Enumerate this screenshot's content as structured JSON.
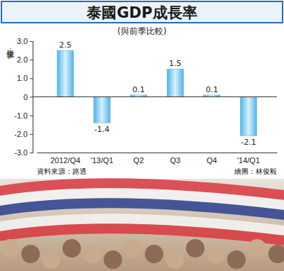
{
  "chart_data": {
    "type": "bar",
    "title": "泰國GDP成長率",
    "subtitle": "(與前季比較)",
    "y_label": "單位：%",
    "categories": [
      "2012/Q4",
      "'13/Q1",
      "Q2",
      "Q3",
      "Q4",
      "'14/Q1"
    ],
    "values": [
      2.5,
      -1.4,
      0.1,
      1.5,
      0.1,
      -2.1
    ],
    "color": "#4db4ea",
    "ylim": [
      -3,
      3
    ],
    "yticks": [
      {
        "value": 3,
        "label": "3.0"
      },
      {
        "value": 2,
        "label": "2.0"
      },
      {
        "value": 1,
        "label": "1.0"
      },
      0,
      {
        "value": -1,
        "label": "-1.0"
      },
      {
        "value": -2,
        "label": "-2.0"
      },
      {
        "value": -3,
        "label": "-3.0"
      }
    ],
    "grid": false,
    "data_labels": true,
    "annotations": [
      "資料來源：路透",
      "繪圖：林俊毅"
    ]
  }
}
